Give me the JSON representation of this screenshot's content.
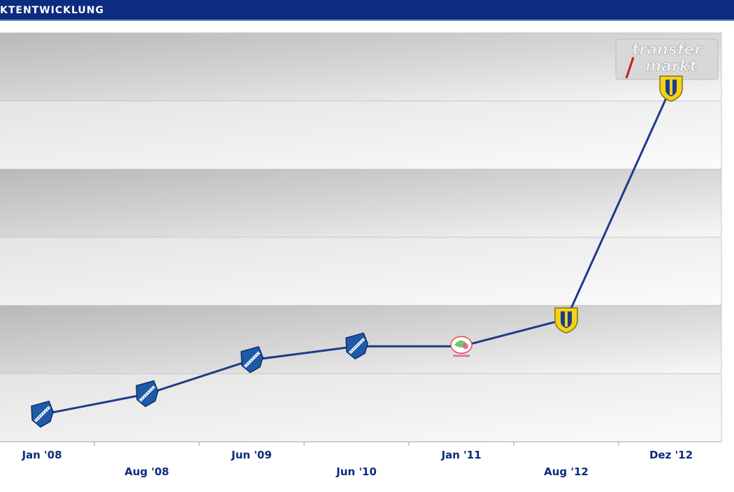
{
  "header": {
    "title": "KTENTWICKLUNG"
  },
  "watermark": {
    "line1": "transfer",
    "line2": "markt"
  },
  "colors": {
    "header_bg": "#0d2b7f",
    "line": "#1e3a8a",
    "tick_label": "#0d2b7f",
    "band_dark": "#c4c4c4",
    "band_light": "#f4f4f4",
    "crest_blue": "#1f5aa8",
    "crest_yellow": "#f4d21a"
  },
  "chart_data": {
    "type": "line",
    "x_ticks": [
      "Jan '08",
      "Aug '08",
      "Jun '09",
      "Jun '10",
      "Jan '11",
      "Aug '12",
      "Dez '12"
    ],
    "y_axis_labels": "none",
    "grid": true,
    "band_count": 6,
    "series": [
      {
        "points": [
          {
            "x": "Jan '08",
            "y": 0.4,
            "marker": "blue-crest-icon"
          },
          {
            "x": "Aug '08",
            "y": 0.7,
            "marker": "blue-crest-icon"
          },
          {
            "x": "Jun '09",
            "y": 1.2,
            "marker": "blue-crest-icon"
          },
          {
            "x": "Jun '10",
            "y": 1.4,
            "marker": "blue-crest-icon"
          },
          {
            "x": "Jan '11",
            "y": 1.4,
            "marker": "colorful-logo-icon"
          },
          {
            "x": "Aug '12",
            "y": 1.8,
            "marker": "yellow-crest-icon"
          },
          {
            "x": "Dez '12",
            "y": 5.2,
            "marker": "yellow-crest-icon"
          }
        ]
      }
    ],
    "ylim": [
      0,
      6
    ]
  }
}
